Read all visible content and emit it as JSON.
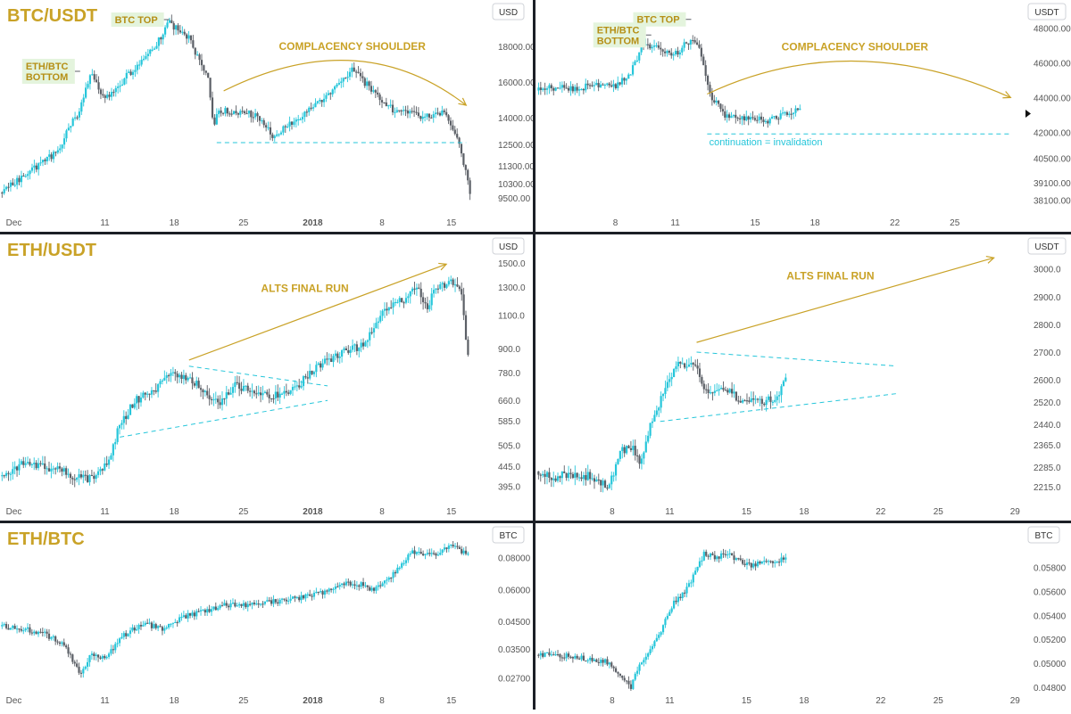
{
  "colors": {
    "candle_up": "#26c6da",
    "candle_down": "#5b5f66",
    "title": "#c9a227",
    "annotation_line": "#c9a227",
    "annotation_text": "#c9a227",
    "label_box_bg": "#e4f4dd",
    "label_box_text": "#b58f16",
    "dashed_line": "#26c6da",
    "axis_text": "#555555",
    "divider": "#1c1f26"
  },
  "chart_data": [
    {
      "id": "btc_2017",
      "type": "candlestick",
      "title": "BTC/USDT",
      "unit": "USD",
      "ylim": [
        8800,
        20000
      ],
      "y_ticks": [
        18000,
        16000,
        14000,
        12500,
        11300,
        10300,
        9500
      ],
      "y_tick_labels": [
        "18000.00",
        "16000.00",
        "14000.00",
        "12500.00",
        "11300.00",
        "10300.00",
        "9500.00"
      ],
      "x_tick_labels": [
        "Dec",
        "11",
        "18",
        "25",
        "2018",
        "8",
        "15"
      ],
      "x_tick_days": [
        1,
        11,
        18,
        25,
        32,
        39,
        46
      ],
      "xlim": [
        0.4,
        50
      ],
      "series": [
        {
          "x": [
            0.5,
            3,
            6,
            8.5,
            9.5,
            11,
            13,
            16,
            17.5,
            19.5,
            21.5,
            22,
            22.5,
            24,
            26,
            28,
            30.5,
            33,
            35,
            36,
            38,
            40,
            42,
            44,
            45.5,
            46.8,
            47.5,
            48
          ],
          "y": [
            9800,
            10800,
            12000,
            14500,
            16500,
            15000,
            16200,
            18000,
            19300,
            18500,
            16000,
            13500,
            14500,
            14200,
            14200,
            13000,
            14000,
            15000,
            16000,
            16800,
            15500,
            14500,
            14200,
            14000,
            14300,
            12500,
            10800,
            9600
          ]
        }
      ],
      "annotations": [
        {
          "type": "box_label",
          "text": "ETH/BTC BOTTOM",
          "lines": [
            "ETH/BTC",
            "BOTTOM"
          ],
          "x": 8.5,
          "y": 16600
        },
        {
          "type": "box_label",
          "text": "BTC TOP",
          "lines": [
            "BTC TOP"
          ],
          "x": 17.5,
          "y": 19500
        },
        {
          "type": "curve_arrow",
          "text": "COMPLACENCY SHOULDER",
          "from": [
            23,
            15500
          ],
          "peak": [
            36,
            17200
          ],
          "to": [
            47.5,
            14700
          ]
        },
        {
          "type": "dashed_hline",
          "y": 12600,
          "x_from": 22.3,
          "x_to": 47.5
        }
      ]
    },
    {
      "id": "btc_now",
      "type": "candlestick",
      "title": "",
      "unit": "USDT",
      "ylim": [
        37500,
        49000
      ],
      "y_ticks": [
        48000,
        46000,
        44000,
        42000,
        40500,
        39100,
        38100
      ],
      "y_tick_labels": [
        "48000.00",
        "46000.00",
        "44000.00",
        "42000.00",
        "40500.00",
        "39100.00",
        "38100.00"
      ],
      "x_tick_labels": [
        "8",
        "11",
        "15",
        "18",
        "22",
        "25"
      ],
      "x_tick_days": [
        8,
        11,
        15,
        18,
        22,
        25
      ],
      "xlim": [
        4,
        28.5
      ],
      "series": [
        {
          "x": [
            4.1,
            5,
            6,
            7,
            8,
            8.8,
            9.4,
            10,
            10.6,
            11.2,
            11.8,
            12.3,
            12.8,
            13.5,
            14.2,
            15,
            15.5,
            16,
            16.8,
            17.3
          ],
          "y": [
            44400,
            44600,
            44500,
            44700,
            44700,
            45500,
            47200,
            46900,
            46500,
            46700,
            47400,
            46500,
            44000,
            43000,
            42800,
            42900,
            42500,
            42900,
            43200,
            43600
          ]
        }
      ],
      "annotations": [
        {
          "type": "box_label",
          "text": "ETH/BTC BOTTOM",
          "lines": [
            "ETH/BTC",
            "BOTTOM"
          ],
          "x": 9.8,
          "y": 47600
        },
        {
          "type": "box_label",
          "text": "BTC TOP",
          "lines": [
            "BTC TOP"
          ],
          "x": 11.8,
          "y": 48500
        },
        {
          "type": "curve_arrow",
          "text": "COMPLACENCY SHOULDER",
          "from": [
            12.6,
            44200
          ],
          "peak": [
            20,
            46100
          ],
          "to": [
            27.8,
            44000
          ]
        },
        {
          "type": "dashed_hline",
          "y": 41900,
          "x_from": 12.6,
          "x_to": 27.8
        },
        {
          "type": "text",
          "text": "continuation = invalidation",
          "x": 12.7,
          "y": 41250
        }
      ]
    },
    {
      "id": "eth_2017",
      "type": "candlestick",
      "title": "ETH/USDT",
      "unit": "USD",
      "scale": "log",
      "ylim": [
        360,
        1600
      ],
      "y_ticks": [
        1500,
        1300,
        1100,
        900,
        780,
        660,
        585,
        505,
        445,
        395
      ],
      "y_tick_labels": [
        "1500.0",
        "1300.0",
        "1100.0",
        "900.0",
        "780.0",
        "660.0",
        "585.0",
        "505.0",
        "445.0",
        "395.0"
      ],
      "x_tick_labels": [
        "Dec",
        "11",
        "18",
        "25",
        "2018",
        "8",
        "15"
      ],
      "x_tick_days": [
        1,
        11,
        18,
        25,
        32,
        39,
        46
      ],
      "xlim": [
        0.4,
        50
      ],
      "series": [
        {
          "x": [
            0.5,
            3,
            6,
            8,
            10,
            11.5,
            12.5,
            14,
            16,
            17.5,
            19.5,
            21,
            22.5,
            24,
            26,
            28,
            30,
            31.5,
            33,
            35,
            37,
            39,
            41,
            42.5,
            43.5,
            44.5,
            46,
            47,
            47.8
          ],
          "y": [
            420,
            455,
            440,
            420,
            410,
            470,
            570,
            660,
            700,
            770,
            760,
            700,
            640,
            720,
            700,
            680,
            710,
            760,
            830,
            880,
            920,
            1100,
            1200,
            1300,
            1150,
            1300,
            1350,
            1300,
            800
          ]
        }
      ],
      "annotations": [
        {
          "type": "arrow",
          "text": "ALTS FINAL RUN",
          "from": [
            19.5,
            840
          ],
          "to": [
            45.5,
            1490
          ]
        },
        {
          "type": "dashed_line",
          "from": [
            19.5,
            810
          ],
          "to": [
            33.5,
            720
          ]
        },
        {
          "type": "dashed_line",
          "from": [
            12.5,
            530
          ],
          "to": [
            33.5,
            660
          ]
        }
      ]
    },
    {
      "id": "eth_now",
      "type": "candlestick",
      "title": "",
      "unit": "USDT",
      "ylim": [
        2160,
        3060
      ],
      "y_ticks": [
        3000,
        2900,
        2800,
        2700,
        2600,
        2520,
        2440,
        2365,
        2285,
        2215
      ],
      "y_tick_labels": [
        "3000.0",
        "2900.0",
        "2800.0",
        "2700.0",
        "2600.0",
        "2520.0",
        "2440.0",
        "2365.0",
        "2285.0",
        "2215.0"
      ],
      "x_tick_labels": [
        "8",
        "11",
        "15",
        "18",
        "22",
        "25",
        "29"
      ],
      "x_tick_days": [
        8,
        11,
        15,
        18,
        22,
        25,
        29
      ],
      "xlim": [
        4,
        29.5
      ],
      "series": [
        {
          "x": [
            4.1,
            5,
            6,
            7,
            7.8,
            8.4,
            9,
            9.5,
            10,
            10.6,
            11.3,
            12,
            12.4,
            12.9,
            13.5,
            14.2,
            15,
            15.5,
            16,
            16.6,
            17.1
          ],
          "y": [
            2270,
            2250,
            2260,
            2250,
            2210,
            2340,
            2360,
            2300,
            2450,
            2540,
            2650,
            2660,
            2640,
            2560,
            2570,
            2550,
            2520,
            2530,
            2520,
            2540,
            2600
          ]
        }
      ],
      "annotations": [
        {
          "type": "arrow",
          "text": "ALTS FINAL RUN",
          "from": [
            12.4,
            2735
          ],
          "to": [
            27.9,
            3040
          ]
        },
        {
          "type": "dashed_line",
          "from": [
            12.4,
            2700
          ],
          "to": [
            22.8,
            2650
          ]
        },
        {
          "type": "dashed_line",
          "from": [
            10.5,
            2450
          ],
          "to": [
            22.8,
            2550
          ]
        }
      ]
    },
    {
      "id": "ethbtc_2017",
      "type": "candlestick",
      "title": "ETH/BTC",
      "unit": "BTC",
      "scale": "log",
      "ylim": [
        0.024,
        0.096
      ],
      "y_ticks": [
        0.08,
        0.06,
        0.045,
        0.035,
        0.027
      ],
      "y_tick_labels": [
        "0.08000",
        "0.06000",
        "0.04500",
        "0.03500",
        "0.02700"
      ],
      "x_tick_labels": [
        "Dec",
        "11",
        "18",
        "25",
        "2018",
        "8",
        "15"
      ],
      "x_tick_days": [
        1,
        11,
        18,
        25,
        32,
        39,
        46
      ],
      "xlim": [
        0.4,
        50
      ],
      "series": [
        {
          "x": [
            0.5,
            3,
            5,
            7,
            8.5,
            9.5,
            11,
            13,
            15,
            17,
            19,
            21,
            23,
            25,
            27,
            30,
            33,
            35,
            37,
            38,
            39.5,
            41,
            42,
            44,
            46,
            47.8
          ],
          "y": [
            0.043,
            0.042,
            0.04,
            0.036,
            0.028,
            0.033,
            0.032,
            0.04,
            0.044,
            0.042,
            0.047,
            0.049,
            0.052,
            0.052,
            0.053,
            0.055,
            0.058,
            0.063,
            0.063,
            0.06,
            0.065,
            0.075,
            0.085,
            0.082,
            0.088,
            0.083
          ]
        }
      ],
      "annotations": []
    },
    {
      "id": "ethbtc_now",
      "type": "candlestick",
      "title": "",
      "unit": "BTC",
      "ylim": [
        0.0477,
        0.0605
      ],
      "y_ticks": [
        0.058,
        0.056,
        0.054,
        0.052,
        0.05,
        0.048
      ],
      "y_tick_labels": [
        "0.05800",
        "0.05600",
        "0.05400",
        "0.05200",
        "0.05000",
        "0.04800"
      ],
      "x_tick_labels": [
        "8",
        "11",
        "15",
        "18",
        "22",
        "25",
        "29"
      ],
      "x_tick_days": [
        8,
        11,
        15,
        18,
        22,
        25,
        29
      ],
      "xlim": [
        4,
        29.5
      ],
      "series": [
        {
          "x": [
            4.1,
            5,
            6,
            7,
            7.8,
            8.5,
            9,
            9.3,
            10,
            10.6,
            11.2,
            11.8,
            12.3,
            12.8,
            13.3,
            14,
            14.7,
            15.3,
            16,
            16.6,
            17.1
          ],
          "y": [
            0.0507,
            0.0507,
            0.0506,
            0.0503,
            0.0501,
            0.049,
            0.048,
            0.0495,
            0.051,
            0.053,
            0.055,
            0.056,
            0.0575,
            0.0592,
            0.0588,
            0.0592,
            0.0585,
            0.0582,
            0.0585,
            0.0583,
            0.059
          ]
        }
      ],
      "annotations": []
    }
  ]
}
